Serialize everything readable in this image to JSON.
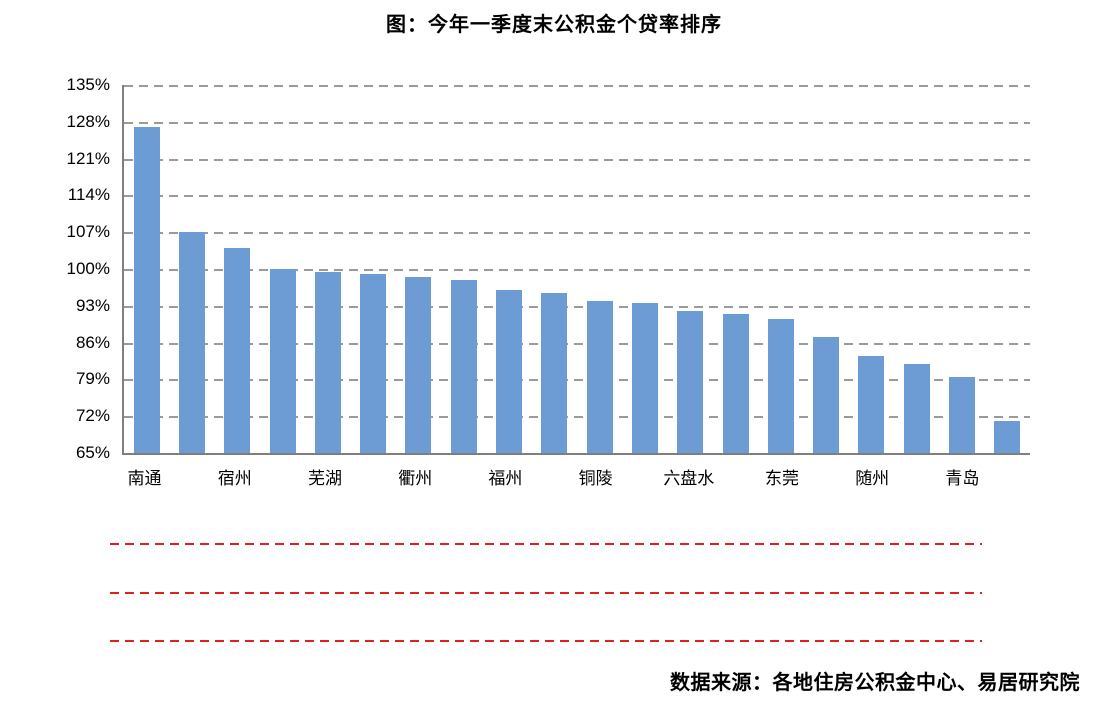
{
  "title": "图：今年一季度末公积金个贷率排序",
  "source": "数据来源：各地住房公积金中心、易居研究院",
  "colors": {
    "bar": "#6D9BD3",
    "gridline": "#9a9a9a",
    "axis": "#7f7f7f",
    "redacted_line": "#e01f1f",
    "text": "#000000",
    "background": "#ffffff"
  },
  "redaction": {
    "line_count": 3,
    "style": "red dashed horizontal lines"
  },
  "chart_data": {
    "type": "bar",
    "title": "图：今年一季度末公积金个贷率排序",
    "xlabel": "",
    "ylabel": "",
    "ylim": [
      65,
      135
    ],
    "ytick_step": 7,
    "ytick_labels": [
      "135%",
      "128%",
      "121%",
      "114%",
      "107%",
      "100%",
      "93%",
      "86%",
      "79%",
      "72%",
      "65%"
    ],
    "grid": "horizontal dashed gridlines on",
    "legend_position": "none",
    "bar_color": "#6D9BD3",
    "note": "20 bars sorted descending; only every other bar has a city label on the x-axis",
    "categories": [
      "南通",
      "",
      "宿州",
      "",
      "芜湖",
      "",
      "衢州",
      "",
      "福州",
      "",
      "铜陵",
      "",
      "六盘水",
      "",
      "东莞",
      "",
      "随州",
      "",
      "青岛",
      ""
    ],
    "values": [
      127,
      107,
      104,
      100,
      99.5,
      99,
      98.5,
      98,
      96,
      95.5,
      94,
      93.5,
      92,
      91.5,
      90.5,
      87,
      83.5,
      82,
      79.5,
      71
    ]
  }
}
